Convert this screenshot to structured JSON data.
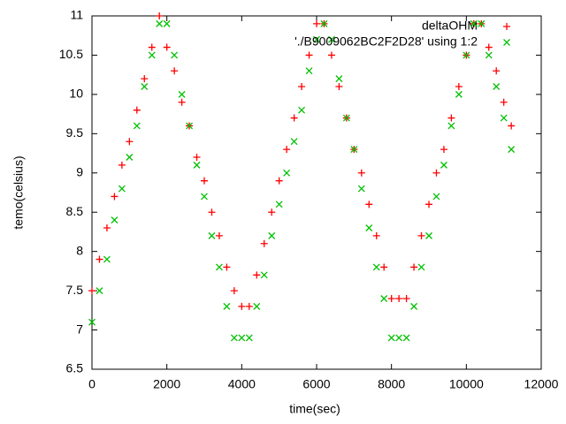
{
  "chart_data": {
    "type": "scatter",
    "xlabel": "time(sec)",
    "ylabel": "temo(celsius)",
    "xlim": [
      0,
      12000
    ],
    "xticks": [
      0,
      2000,
      4000,
      6000,
      8000,
      10000,
      12000
    ],
    "ylim": [
      6.5,
      11
    ],
    "yticks": [
      6.5,
      7,
      7.5,
      8,
      8.5,
      9,
      9.5,
      10,
      10.5,
      11
    ],
    "legend": "top-right",
    "x": [
      0,
      200,
      400,
      600,
      800,
      1000,
      1200,
      1400,
      1600,
      1800,
      2000,
      2200,
      2400,
      2600,
      2800,
      3000,
      3200,
      3400,
      3600,
      3800,
      4000,
      4200,
      4400,
      4600,
      4800,
      5000,
      5200,
      5400,
      5600,
      5800,
      6000,
      6200,
      6400,
      6600,
      6800,
      7000,
      7200,
      7400,
      7600,
      7800,
      8000,
      8200,
      8400,
      8600,
      8800,
      9000,
      9200,
      9400,
      9600,
      9800,
      10000,
      10200,
      10400,
      10600,
      10800,
      11000,
      11200
    ],
    "series": [
      {
        "name": "deltaOHM",
        "color": "#ff0000",
        "marker": "plus",
        "values": [
          7.5,
          7.9,
          8.3,
          8.7,
          9.1,
          9.4,
          9.8,
          10.2,
          10.6,
          11.0,
          10.6,
          10.3,
          9.9,
          9.6,
          9.2,
          8.9,
          8.5,
          8.2,
          7.8,
          7.5,
          7.3,
          7.3,
          7.7,
          8.1,
          8.5,
          8.9,
          9.3,
          9.7,
          10.1,
          10.5,
          10.9,
          10.9,
          10.5,
          10.1,
          9.7,
          9.3,
          9.0,
          8.6,
          8.2,
          7.8,
          7.4,
          7.4,
          7.4,
          7.8,
          8.2,
          8.6,
          9.0,
          9.3,
          9.7,
          10.1,
          10.5,
          10.9,
          10.9,
          10.6,
          10.3,
          9.9,
          9.6
        ]
      },
      {
        "name": "'./B9009062BC2F2D28' using 1:2",
        "color": "#00c000",
        "marker": "cross",
        "values": [
          7.1,
          7.5,
          7.9,
          8.4,
          8.8,
          9.2,
          9.6,
          10.1,
          10.5,
          10.9,
          10.9,
          10.5,
          10.0,
          9.6,
          9.1,
          8.7,
          8.2,
          7.8,
          7.3,
          6.9,
          6.9,
          6.9,
          7.3,
          7.7,
          8.2,
          8.6,
          9.0,
          9.4,
          9.8,
          10.3,
          10.7,
          10.9,
          10.7,
          10.2,
          9.7,
          9.3,
          8.8,
          8.3,
          7.8,
          7.4,
          6.9,
          6.9,
          6.9,
          7.3,
          7.8,
          8.2,
          8.7,
          9.1,
          9.6,
          10.0,
          10.5,
          10.9,
          10.9,
          10.5,
          10.1,
          9.7,
          9.3
        ]
      }
    ]
  }
}
